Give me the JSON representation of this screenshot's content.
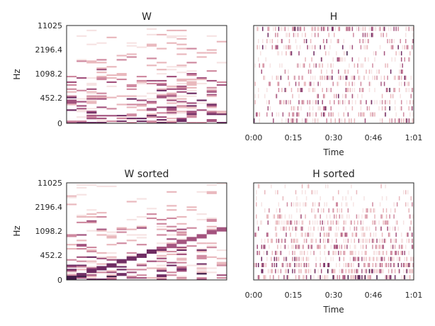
{
  "figure": {
    "background": "#ffffff",
    "colormap": [
      "#ffffff",
      "#f6e3e3",
      "#e9b8bd",
      "#cf8aa0",
      "#a3537e",
      "#6e2b62",
      "#3e1845"
    ]
  },
  "chart_data": [
    {
      "type": "heatmap",
      "title": "W",
      "xlabel": "",
      "ylabel": "Hz",
      "yticks": [
        "11025",
        "2196.4",
        "1098.2",
        "452.2",
        "0"
      ],
      "xticks": [],
      "n_components": 16,
      "sorted": false
    },
    {
      "type": "heatmap",
      "title": "H",
      "xlabel": "Time",
      "ylabel": "",
      "xticks": [
        "0:00",
        "0:15",
        "0:30",
        "0:46",
        "1:01"
      ],
      "yticks": [],
      "n_components": 16,
      "sorted": false
    },
    {
      "type": "heatmap",
      "title": "W sorted",
      "xlabel": "",
      "ylabel": "Hz",
      "yticks": [
        "11025",
        "2196.4",
        "1098.2",
        "452.2",
        "0"
      ],
      "xticks": [],
      "n_components": 16,
      "sorted": true
    },
    {
      "type": "heatmap",
      "title": "H sorted",
      "xlabel": "Time",
      "ylabel": "",
      "xticks": [
        "0:00",
        "0:15",
        "0:30",
        "0:46",
        "1:01"
      ],
      "yticks": [],
      "n_components": 16,
      "sorted": true
    }
  ]
}
